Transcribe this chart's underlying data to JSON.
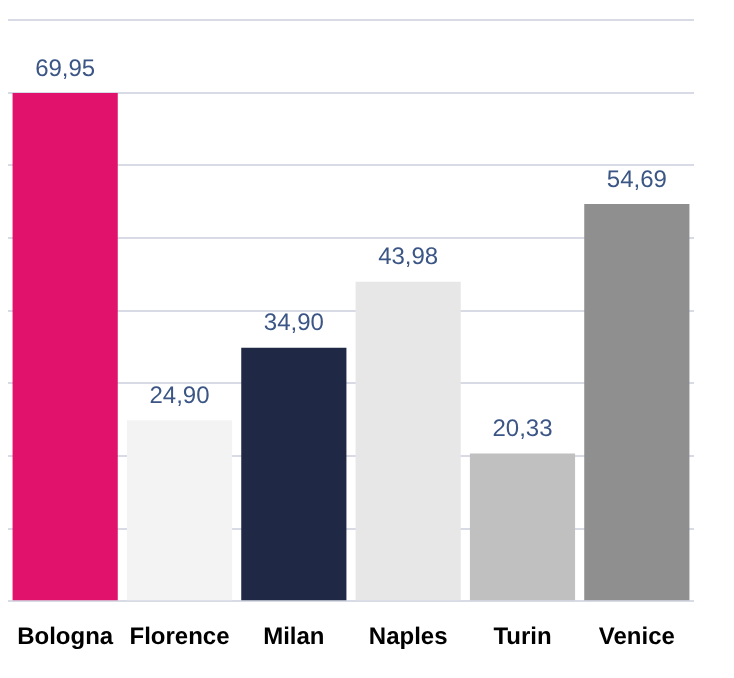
{
  "chart_data": {
    "type": "bar",
    "categories": [
      "Bologna",
      "Florence",
      "Milan",
      "Naples",
      "Turin",
      "Venice"
    ],
    "values": [
      69.95,
      24.9,
      34.9,
      43.98,
      20.33,
      54.69
    ],
    "colors": [
      "#e0126b",
      "#f3f3f3",
      "#1f2945",
      "#e7e7e7",
      "#c0c0c0",
      "#8f8f8f"
    ],
    "value_labels": [
      "69,95",
      "24,90",
      "34,90",
      "43,98",
      "20,33",
      "54,69"
    ],
    "ylim": [
      0,
      80
    ],
    "yticks": [
      {
        "value": 0,
        "label": null
      },
      {
        "value": 10,
        "label": null
      },
      {
        "value": 20,
        "label": null
      },
      {
        "value": 30,
        "label": null
      },
      {
        "value": 40,
        "label": null
      },
      {
        "value": 50,
        "label": null
      },
      {
        "value": 60,
        "label": null
      },
      {
        "value": 70,
        "label": null
      },
      {
        "value": 80,
        "label": null
      }
    ],
    "grid": "y",
    "tick_labels": "x"
  }
}
